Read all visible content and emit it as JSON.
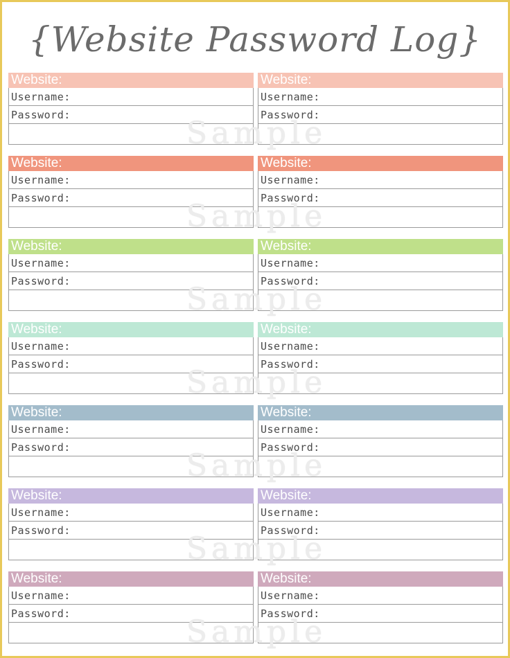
{
  "title": "{Website Password Log}",
  "labels": {
    "website": "Website:",
    "username": "Username:",
    "password": "Password:"
  },
  "watermark": "Sample",
  "row_colors": [
    "#f7c3b4",
    "#f0957d",
    "#bfe08a",
    "#bde8d5",
    "#a3bccb",
    "#c6b8de",
    "#cfa9bc"
  ]
}
